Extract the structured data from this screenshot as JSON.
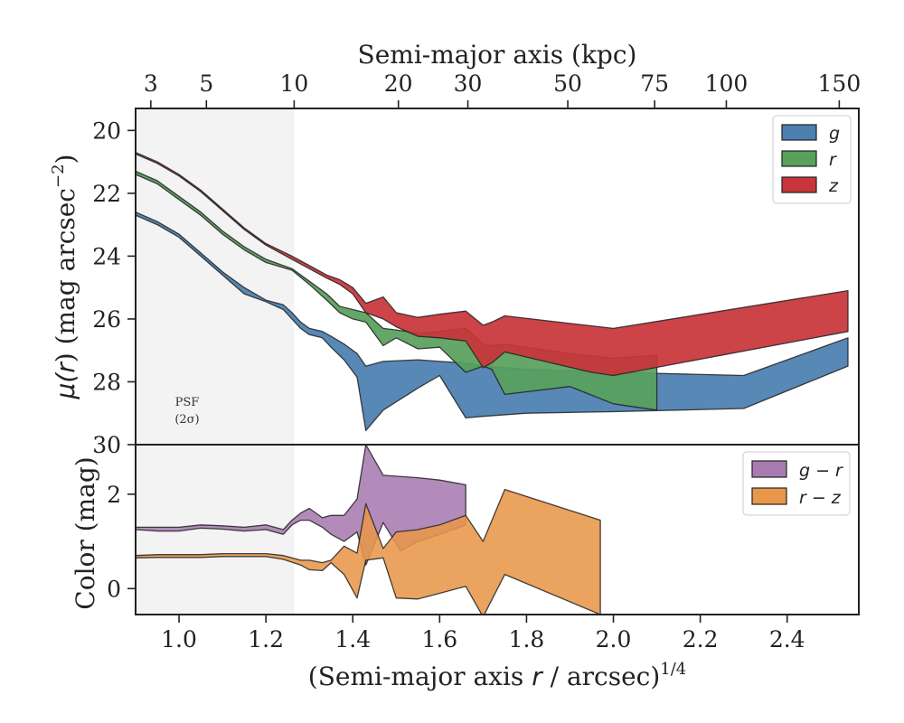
{
  "chart_data": [
    {
      "type": "area",
      "panel": "surface-brightness",
      "xlabel": "(Semi-major axis r / arcsec)^1/4",
      "xlabel_parts": {
        "main": "(Semi-major axis ",
        "var": "r",
        "mid": " / arcsec)",
        "sup": "1/4"
      },
      "ylabel": "μ(r) (mag arcsec^-2)",
      "ylabel_parts": {
        "main": "μ(",
        "var": "r",
        "mid": ") (mag arcsec",
        "sup": "−2",
        "end": ")"
      },
      "top_xlabel": "Semi-major axis (kpc)",
      "xlim": [
        0.9,
        2.565
      ],
      "ylim": [
        30.0,
        19.3
      ],
      "y_inverted": true,
      "yticks": [
        20,
        22,
        24,
        26,
        28,
        30
      ],
      "top_xticks_kpc": [
        3,
        5,
        10,
        20,
        30,
        50,
        75,
        100,
        150
      ],
      "top_xticks_x": [
        0.935,
        1.063,
        1.265,
        1.505,
        1.665,
        1.895,
        2.095,
        2.26,
        2.52
      ],
      "psf_region_x": [
        0.9,
        1.265
      ],
      "psf_label": [
        "PSF",
        "(2σ)"
      ],
      "legend_loc": "upper right",
      "series": [
        {
          "name": "g",
          "color": "#4a7fb0",
          "upper_x": [
            0.9,
            0.95,
            1.0,
            1.05,
            1.1,
            1.15,
            1.2,
            1.24,
            1.26,
            1.28,
            1.3,
            1.33,
            1.35,
            1.38,
            1.41,
            1.43,
            1.47,
            1.55,
            1.6,
            1.66,
            1.7,
            1.8,
            2.0,
            2.3,
            2.54
          ],
          "upper_y": [
            22.6,
            22.9,
            23.3,
            23.9,
            24.5,
            25.0,
            25.4,
            25.55,
            25.8,
            26.1,
            26.3,
            26.4,
            26.55,
            26.8,
            27.1,
            27.5,
            27.35,
            27.3,
            27.35,
            27.4,
            27.5,
            27.6,
            27.7,
            27.8,
            26.6
          ],
          "lower_x": [
            0.9,
            0.95,
            1.0,
            1.05,
            1.1,
            1.15,
            1.2,
            1.24,
            1.26,
            1.28,
            1.3,
            1.33,
            1.35,
            1.38,
            1.41,
            1.43,
            1.47,
            1.55,
            1.6,
            1.66,
            1.7,
            1.8,
            2.0,
            2.3,
            2.54
          ],
          "lower_y": [
            22.7,
            23.0,
            23.4,
            24.0,
            24.6,
            25.2,
            25.45,
            25.7,
            26.0,
            26.3,
            26.5,
            26.6,
            26.9,
            27.3,
            27.85,
            29.55,
            28.9,
            28.2,
            27.8,
            29.15,
            29.1,
            29.0,
            28.95,
            28.85,
            27.5
          ]
        },
        {
          "name": "r",
          "color": "#58a05c",
          "upper_x": [
            0.9,
            0.95,
            1.0,
            1.05,
            1.1,
            1.15,
            1.2,
            1.26,
            1.3,
            1.34,
            1.37,
            1.4,
            1.43,
            1.47,
            1.5,
            1.55,
            1.6,
            1.66,
            1.7,
            1.72,
            1.75,
            1.9,
            2.0,
            2.1
          ],
          "upper_y": [
            21.3,
            21.6,
            22.1,
            22.6,
            23.2,
            23.7,
            24.1,
            24.4,
            24.8,
            25.2,
            25.6,
            25.7,
            25.8,
            26.3,
            26.35,
            26.45,
            26.4,
            26.3,
            26.8,
            26.85,
            26.8,
            27.1,
            27.25,
            27.15
          ],
          "lower_x": [
            0.9,
            0.95,
            1.0,
            1.05,
            1.1,
            1.15,
            1.2,
            1.26,
            1.3,
            1.34,
            1.37,
            1.4,
            1.43,
            1.47,
            1.5,
            1.55,
            1.6,
            1.66,
            1.7,
            1.72,
            1.75,
            1.9,
            2.0,
            2.1
          ],
          "lower_y": [
            21.4,
            21.7,
            22.2,
            22.7,
            23.3,
            23.8,
            24.2,
            24.45,
            24.9,
            25.4,
            25.8,
            26.0,
            26.1,
            26.85,
            26.6,
            26.95,
            26.9,
            27.7,
            27.5,
            27.6,
            28.4,
            28.15,
            28.7,
            28.9
          ]
        },
        {
          "name": "z",
          "color": "#c8353a",
          "upper_x": [
            0.9,
            0.95,
            1.0,
            1.05,
            1.1,
            1.15,
            1.2,
            1.26,
            1.3,
            1.34,
            1.37,
            1.4,
            1.43,
            1.47,
            1.5,
            1.55,
            1.6,
            1.66,
            1.7,
            1.72,
            1.75,
            2.0,
            2.54
          ],
          "upper_y": [
            20.7,
            21.0,
            21.4,
            21.9,
            22.5,
            23.1,
            23.6,
            24.0,
            24.3,
            24.6,
            24.75,
            25.0,
            25.5,
            25.3,
            25.8,
            25.95,
            25.85,
            25.75,
            26.2,
            26.1,
            25.9,
            26.3,
            25.1
          ],
          "lower_x": [
            0.9,
            0.95,
            1.0,
            1.05,
            1.1,
            1.15,
            1.2,
            1.26,
            1.3,
            1.34,
            1.37,
            1.4,
            1.43,
            1.47,
            1.5,
            1.55,
            1.6,
            1.66,
            1.7,
            1.72,
            1.75,
            1.95,
            2.0,
            2.54
          ],
          "lower_y": [
            20.75,
            21.05,
            21.45,
            21.95,
            22.55,
            23.15,
            23.65,
            24.1,
            24.4,
            24.7,
            24.9,
            25.2,
            25.8,
            26.0,
            26.25,
            26.55,
            26.6,
            26.7,
            27.55,
            27.4,
            27.05,
            27.7,
            27.8,
            26.4
          ]
        }
      ]
    },
    {
      "type": "area",
      "panel": "color",
      "ylabel": "Color (mag)",
      "xlim": [
        0.9,
        2.565
      ],
      "ylim": [
        -0.55,
        3.05
      ],
      "yticks": [
        0,
        2
      ],
      "xticks": [
        1.0,
        1.2,
        1.4,
        1.6,
        1.8,
        2.0,
        2.2,
        2.4
      ],
      "xtick_labels": [
        "1.0",
        "1.2",
        "1.4",
        "1.6",
        "1.8",
        "2.0",
        "2.2",
        "2.4"
      ],
      "legend_loc": "upper right",
      "series": [
        {
          "name": "g − r",
          "color": "#a77bb0",
          "upper_x": [
            0.9,
            0.95,
            1.0,
            1.05,
            1.1,
            1.15,
            1.2,
            1.24,
            1.26,
            1.28,
            1.3,
            1.33,
            1.35,
            1.38,
            1.41,
            1.43,
            1.47,
            1.55,
            1.6,
            1.66
          ],
          "upper_y": [
            1.3,
            1.3,
            1.3,
            1.35,
            1.33,
            1.3,
            1.35,
            1.25,
            1.45,
            1.6,
            1.7,
            1.5,
            1.55,
            1.55,
            1.9,
            3.05,
            2.4,
            2.35,
            2.3,
            2.2
          ],
          "lower_x": [
            0.9,
            0.95,
            1.0,
            1.05,
            1.1,
            1.15,
            1.2,
            1.24,
            1.26,
            1.28,
            1.3,
            1.33,
            1.35,
            1.38,
            1.41,
            1.43,
            1.47,
            1.51,
            1.55,
            1.6,
            1.66
          ],
          "lower_y": [
            1.25,
            1.22,
            1.22,
            1.28,
            1.26,
            1.22,
            1.25,
            1.15,
            1.35,
            1.45,
            1.45,
            1.3,
            1.15,
            1.0,
            1.2,
            0.5,
            1.4,
            0.8,
            1.0,
            1.15,
            1.35
          ]
        },
        {
          "name": "r − z",
          "color": "#e8964a",
          "upper_x": [
            0.9,
            0.95,
            1.0,
            1.05,
            1.1,
            1.15,
            1.2,
            1.24,
            1.28,
            1.3,
            1.33,
            1.35,
            1.38,
            1.41,
            1.43,
            1.47,
            1.5,
            1.55,
            1.6,
            1.66,
            1.7,
            1.75,
            1.97
          ],
          "upper_y": [
            0.7,
            0.72,
            0.72,
            0.72,
            0.74,
            0.74,
            0.74,
            0.7,
            0.6,
            0.6,
            0.55,
            0.6,
            0.9,
            0.75,
            1.8,
            0.85,
            1.2,
            1.25,
            1.35,
            1.55,
            1.0,
            2.1,
            1.45
          ],
          "lower_x": [
            0.9,
            0.95,
            1.0,
            1.05,
            1.1,
            1.15,
            1.2,
            1.24,
            1.28,
            1.3,
            1.33,
            1.35,
            1.38,
            1.41,
            1.43,
            1.47,
            1.5,
            1.55,
            1.6,
            1.66,
            1.7,
            1.75,
            1.97
          ],
          "lower_y": [
            0.65,
            0.66,
            0.66,
            0.66,
            0.68,
            0.68,
            0.68,
            0.62,
            0.5,
            0.4,
            0.38,
            0.55,
            0.3,
            -0.2,
            0.6,
            0.65,
            -0.2,
            -0.22,
            -0.1,
            0.05,
            -0.6,
            0.3,
            -0.55
          ]
        }
      ]
    }
  ]
}
